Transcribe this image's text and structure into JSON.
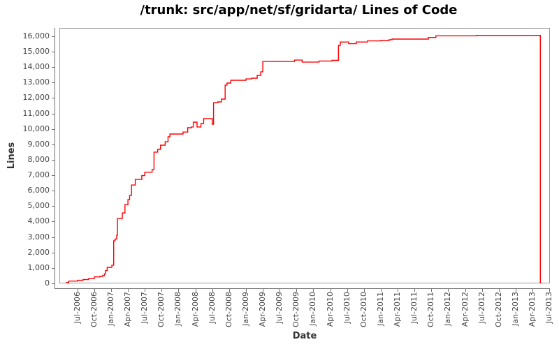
{
  "chart": {
    "title": "/trunk: src/app/net/sf/gridarta/ Lines of Code",
    "xlabel": "Date",
    "ylabel": "Lines"
  },
  "colors": {
    "series": "#ff0000",
    "axis": "#707070",
    "plot_border": "#9a9a9a",
    "tick_label": "#444444",
    "title": "#000000",
    "background": "#ffffff"
  },
  "chart_data": {
    "type": "line",
    "step": "after",
    "title": "/trunk: src/app/net/sf/gridarta/ Lines of Code",
    "xlabel": "Date",
    "ylabel": "Lines",
    "grid": false,
    "legend": false,
    "x_axis": {
      "min": "2006-03-25",
      "max": "2013-07-04",
      "tick_labels": [
        "Jul-2006",
        "Oct-2006",
        "Jan-2007",
        "Apr-2007",
        "Jul-2007",
        "Oct-2007",
        "Jan-2008",
        "Apr-2008",
        "Jul-2008",
        "Oct-2008",
        "Jan-2009",
        "Apr-2009",
        "Jul-2009",
        "Oct-2009",
        "Jan-2010",
        "Apr-2010",
        "Jul-2010",
        "Oct-2010",
        "Jan-2011",
        "Apr-2011",
        "Jul-2011",
        "Oct-2011",
        "Jan-2012",
        "Apr-2012",
        "Jul-2012",
        "Oct-2012",
        "Jan-2013",
        "Apr-2013",
        "Jul-2013"
      ]
    },
    "y_axis": {
      "min": 0,
      "max": 16542,
      "tick_step": 1000,
      "tick_labels": [
        "0",
        "1,000",
        "2,000",
        "3,000",
        "4,000",
        "5,000",
        "6,000",
        "7,000",
        "8,000",
        "9,000",
        "10,000",
        "11,000",
        "12,000",
        "13,000",
        "14,000",
        "15,000",
        "16,000"
      ]
    },
    "series": [
      {
        "name": "Lines of Code",
        "color": "#ff0000",
        "points": [
          [
            "2006-05-01",
            60
          ],
          [
            "2006-05-15",
            150
          ],
          [
            "2006-07-01",
            200
          ],
          [
            "2006-08-01",
            250
          ],
          [
            "2006-09-01",
            310
          ],
          [
            "2006-10-01",
            420
          ],
          [
            "2006-11-01",
            450
          ],
          [
            "2006-11-15",
            500
          ],
          [
            "2006-11-25",
            620
          ],
          [
            "2006-12-01",
            830
          ],
          [
            "2006-12-10",
            1040
          ],
          [
            "2007-01-05",
            1180
          ],
          [
            "2007-01-15",
            2760
          ],
          [
            "2007-01-22",
            2870
          ],
          [
            "2007-02-01",
            3120
          ],
          [
            "2007-02-05",
            4200
          ],
          [
            "2007-03-01",
            4560
          ],
          [
            "2007-03-15",
            5100
          ],
          [
            "2007-04-01",
            5430
          ],
          [
            "2007-04-10",
            5700
          ],
          [
            "2007-04-20",
            6370
          ],
          [
            "2007-05-10",
            6730
          ],
          [
            "2007-06-15",
            6980
          ],
          [
            "2007-07-01",
            7200
          ],
          [
            "2007-08-10",
            7370
          ],
          [
            "2007-08-20",
            8500
          ],
          [
            "2007-09-10",
            8680
          ],
          [
            "2007-09-25",
            8950
          ],
          [
            "2007-10-20",
            9170
          ],
          [
            "2007-11-05",
            9490
          ],
          [
            "2007-11-15",
            9670
          ],
          [
            "2008-01-25",
            9800
          ],
          [
            "2008-02-20",
            10080
          ],
          [
            "2008-03-10",
            10130
          ],
          [
            "2008-03-20",
            10440
          ],
          [
            "2008-04-10",
            10130
          ],
          [
            "2008-05-01",
            10350
          ],
          [
            "2008-05-15",
            10670
          ],
          [
            "2008-07-01",
            10300
          ],
          [
            "2008-07-08",
            11700
          ],
          [
            "2008-08-01",
            11750
          ],
          [
            "2008-08-20",
            11930
          ],
          [
            "2008-09-10",
            12840
          ],
          [
            "2008-09-20",
            12970
          ],
          [
            "2008-10-10",
            13150
          ],
          [
            "2009-01-01",
            13240
          ],
          [
            "2009-02-01",
            13290
          ],
          [
            "2009-03-01",
            13470
          ],
          [
            "2009-03-20",
            13700
          ],
          [
            "2009-04-01",
            14370
          ],
          [
            "2009-09-20",
            14460
          ],
          [
            "2009-11-01",
            14330
          ],
          [
            "2010-02-01",
            14400
          ],
          [
            "2010-04-10",
            14440
          ],
          [
            "2010-05-15",
            15410
          ],
          [
            "2010-05-25",
            15630
          ],
          [
            "2010-07-10",
            15520
          ],
          [
            "2010-08-20",
            15630
          ],
          [
            "2010-10-20",
            15700
          ],
          [
            "2011-01-01",
            15730
          ],
          [
            "2011-02-15",
            15775
          ],
          [
            "2011-03-01",
            15820
          ],
          [
            "2011-09-15",
            15925
          ],
          [
            "2011-10-25",
            16030
          ],
          [
            "2012-06-01",
            16060
          ],
          [
            "2013-05-13",
            16060
          ],
          [
            "2013-05-13",
            0
          ]
        ]
      }
    ]
  }
}
